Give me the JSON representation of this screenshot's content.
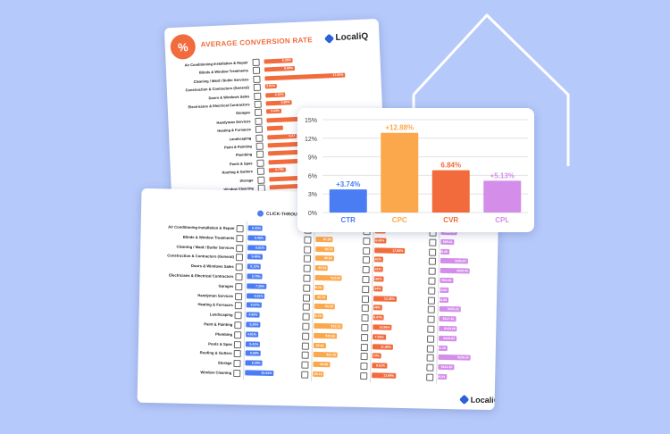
{
  "back": {
    "title": "AVERAGE CONVERSION RATE",
    "badge": "%",
    "logo": "LocaliQ",
    "rows": [
      {
        "label": "Air Conditioning Installation & Repair",
        "value": 6.35
      },
      {
        "label": "Blinds & Window Treatments",
        "value": 6.69
      },
      {
        "label": "Cleaning / Maid / Butler Services",
        "value": 17.65
      },
      {
        "label": "Construction & Contractors (General)",
        "value": 2.61
      },
      {
        "label": "Doors & Windows Sales",
        "value": 4.41
      },
      {
        "label": "Electricians & Electrical Contractors",
        "value": 5.66
      },
      {
        "label": "Garages",
        "value": 3.34
      },
      {
        "label": "Handyman Services",
        "value": 13.36
      },
      {
        "label": "Heating & Furnaces",
        "value": 3.46
      },
      {
        "label": "Landscaping",
        "value": 6.47
      },
      {
        "label": "Paint & Painting",
        "value": 10.96
      },
      {
        "label": "Plumbing",
        "value": 7.53
      },
      {
        "label": "Pools & Spas",
        "value": 11.86
      },
      {
        "label": "Roofing & Gutters",
        "value": 3.73
      },
      {
        "label": "Storage",
        "value": 8.61
      },
      {
        "label": "Window Cleaning",
        "value": 13.89
      }
    ],
    "value_labels": [
      "6.35%",
      "6.69%",
      "17.65%",
      "2.61%",
      "4.41%",
      "5.66%",
      "3.34%",
      "",
      "",
      "6.47",
      "",
      "",
      "",
      "3.73%",
      "8.61%",
      ""
    ]
  },
  "front": {
    "title": "CLICK-THROUGH RATE",
    "logo": "LocaliQ",
    "rows": [
      {
        "label": "Air Conditioning Installation & Repair",
        "ctr": "5.43%",
        "cpc": "$7.95",
        "cvr": "6.35%",
        "cpl": "$114.95"
      },
      {
        "label": "Blinds & Window Treatments",
        "ctr": "6.49%",
        "cpc": "$7.88",
        "cvr": "6.69%",
        "cpl": "$95.61"
      },
      {
        "label": "Cleaning / Maid / Butler Services",
        "ctr": "6.91%",
        "cpc": "$8.72",
        "cvr": "17.65%",
        "cpl": "$45.65"
      },
      {
        "label": "Construction & Contractors (General)",
        "ctr": "5.49%",
        "cpc": "$8.54",
        "cvr": "2.61%",
        "cpl": "$195.87"
      },
      {
        "label": "Doors & Windows Sales",
        "ctr": "5.12%",
        "cpc": "$5.94",
        "cvr": "4.41%",
        "cpl": "$209.08"
      },
      {
        "label": "Electricians & Electrical Contractors",
        "ctr": "5.75%",
        "cpc": "$12.50",
        "cvr": "5.66%",
        "cpl": "$93.49"
      },
      {
        "label": "Garages",
        "ctr": "7.25%",
        "cpc": "$4.06",
        "cvr": "3.34%",
        "cpl": "$63.60"
      },
      {
        "label": "Handyman Services",
        "ctr": "6.81%",
        "cpc": "$5.73",
        "cvr": "13.36%",
        "cpl": "$54.68"
      },
      {
        "label": "Heating & Furnaces",
        "ctr": "5.57%",
        "cpc": "$9.38",
        "cvr": "3.46%",
        "cpl": "$150.22"
      },
      {
        "label": "Landscaping",
        "ctr": "4.88%",
        "cpc": "$3.79",
        "cvr": "6.47%",
        "cpl": "$117.42"
      },
      {
        "label": "Paint & Painting",
        "ctr": "5.29%",
        "cpc": "$13.13",
        "cvr": "10.96%",
        "cpl": "$128.26"
      },
      {
        "label": "Plumbing",
        "ctr": "4.61%",
        "cpc": "$10.66",
        "cvr": "7.53%",
        "cpl": "$125.62"
      },
      {
        "label": "Pools & Spas",
        "ctr": "5.41%",
        "cpc": "$5.61",
        "cvr": "11.86%",
        "cpl": "$61.15"
      },
      {
        "label": "Roofing & Gutters",
        "ctr": "5.68%",
        "cpc": "$11.15",
        "cvr": "3.73%",
        "cpl": "$226.30"
      },
      {
        "label": "Storage",
        "ctr": "6.38%",
        "cpc": "$7.68",
        "cvr": "8.61%",
        "cpl": "$112.30"
      },
      {
        "label": "Window Cleaning",
        "ctr": "10.64%",
        "cpc": "$5.12",
        "cvr": "13.89%",
        "cpl": "$36.94"
      }
    ]
  },
  "chart_data": {
    "type": "bar",
    "categories": [
      "CTR",
      "CPC",
      "CVR",
      "CPL"
    ],
    "values": [
      3.74,
      12.88,
      6.84,
      5.13
    ],
    "data_labels": [
      "+3.74%",
      "+12.88%",
      "6.84%",
      "+5.13%"
    ],
    "ylim": [
      0,
      15
    ],
    "yticks": [
      "0%",
      "3%",
      "6%",
      "9%",
      "12%",
      "15%"
    ],
    "grid": true,
    "colors": [
      "#4a7cf3",
      "#fba84c",
      "#f16b3c",
      "#d48de9"
    ],
    "label_colors": [
      "#4a7cf3",
      "#fba84c",
      "#f16b3c",
      "#d48de9"
    ]
  },
  "colors": {
    "background": "#b6c9fb",
    "house_stroke": "#ffffff",
    "ctr": "#4a7cf3",
    "cpc": "#fba84c",
    "cvr": "#f16b3c",
    "cpl": "#d48de9"
  }
}
